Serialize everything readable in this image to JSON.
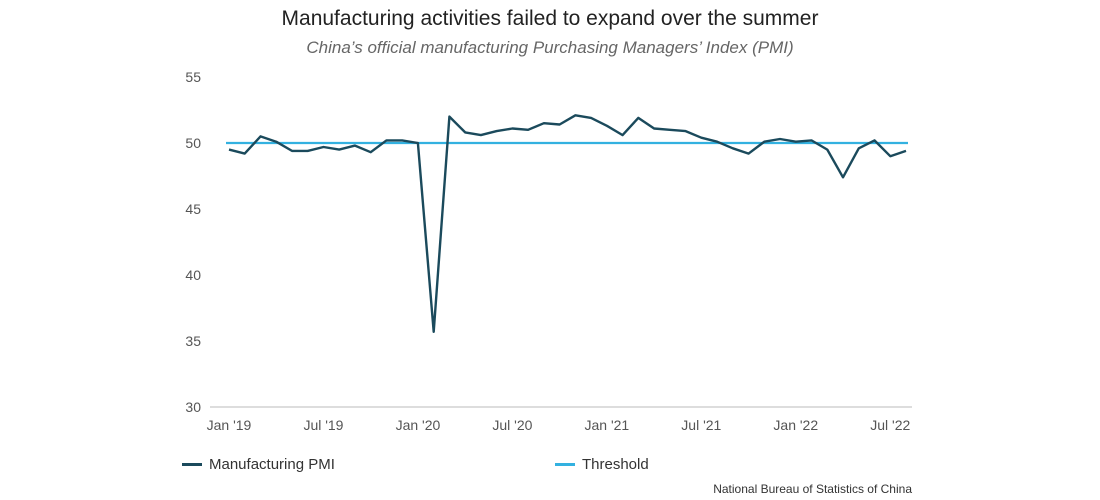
{
  "header": {
    "title": "Manufacturing activities failed to expand over the summer",
    "subtitle": "China’s official manufacturing Purchasing Managers’ Index (PMI)"
  },
  "source": "National Bureau of Statistics of China",
  "colors": {
    "pmi": "#1b4a5c",
    "threshold": "#33b1e0",
    "axis": "#bbbbbb"
  },
  "chart_data": {
    "type": "line",
    "title": "Manufacturing activities failed to expand over the summer",
    "subtitle": "China’s official manufacturing Purchasing Managers’ Index (PMI)",
    "ylim": [
      30,
      55
    ],
    "yticks": [
      30,
      35,
      40,
      45,
      50,
      55
    ],
    "grid": false,
    "legend_position": "bottom",
    "x_ticks": [
      {
        "label": "Jan '19",
        "index": 0
      },
      {
        "label": "Jul '19",
        "index": 6
      },
      {
        "label": "Jan '20",
        "index": 12
      },
      {
        "label": "Jul '20",
        "index": 18
      },
      {
        "label": "Jan '21",
        "index": 24
      },
      {
        "label": "Jul '21",
        "index": 30
      },
      {
        "label": "Jan '22",
        "index": 36
      },
      {
        "label": "Jul '22",
        "index": 42
      }
    ],
    "x": [
      "2019-01",
      "2019-02",
      "2019-03",
      "2019-04",
      "2019-05",
      "2019-06",
      "2019-07",
      "2019-08",
      "2019-09",
      "2019-10",
      "2019-11",
      "2019-12",
      "2020-01",
      "2020-02",
      "2020-03",
      "2020-04",
      "2020-05",
      "2020-06",
      "2020-07",
      "2020-08",
      "2020-09",
      "2020-10",
      "2020-11",
      "2020-12",
      "2021-01",
      "2021-02",
      "2021-03",
      "2021-04",
      "2021-05",
      "2021-06",
      "2021-07",
      "2021-08",
      "2021-09",
      "2021-10",
      "2021-11",
      "2021-12",
      "2022-01",
      "2022-02",
      "2022-03",
      "2022-04",
      "2022-05",
      "2022-06",
      "2022-07",
      "2022-08"
    ],
    "series": [
      {
        "name": "Manufacturing PMI",
        "values": [
          49.5,
          49.2,
          50.5,
          50.1,
          49.4,
          49.4,
          49.7,
          49.5,
          49.8,
          49.3,
          50.2,
          50.2,
          50.0,
          35.7,
          52.0,
          50.8,
          50.6,
          50.9,
          51.1,
          51.0,
          51.5,
          51.4,
          52.1,
          51.9,
          51.3,
          50.6,
          51.9,
          51.1,
          51.0,
          50.9,
          50.4,
          50.1,
          49.6,
          49.2,
          50.1,
          50.3,
          50.1,
          50.2,
          49.5,
          47.4,
          49.6,
          50.2,
          49.0,
          49.4
        ]
      },
      {
        "name": "Threshold",
        "values": [
          50,
          50,
          50,
          50,
          50,
          50,
          50,
          50,
          50,
          50,
          50,
          50,
          50,
          50,
          50,
          50,
          50,
          50,
          50,
          50,
          50,
          50,
          50,
          50,
          50,
          50,
          50,
          50,
          50,
          50,
          50,
          50,
          50,
          50,
          50,
          50,
          50,
          50,
          50,
          50,
          50,
          50,
          50,
          50
        ]
      }
    ]
  }
}
